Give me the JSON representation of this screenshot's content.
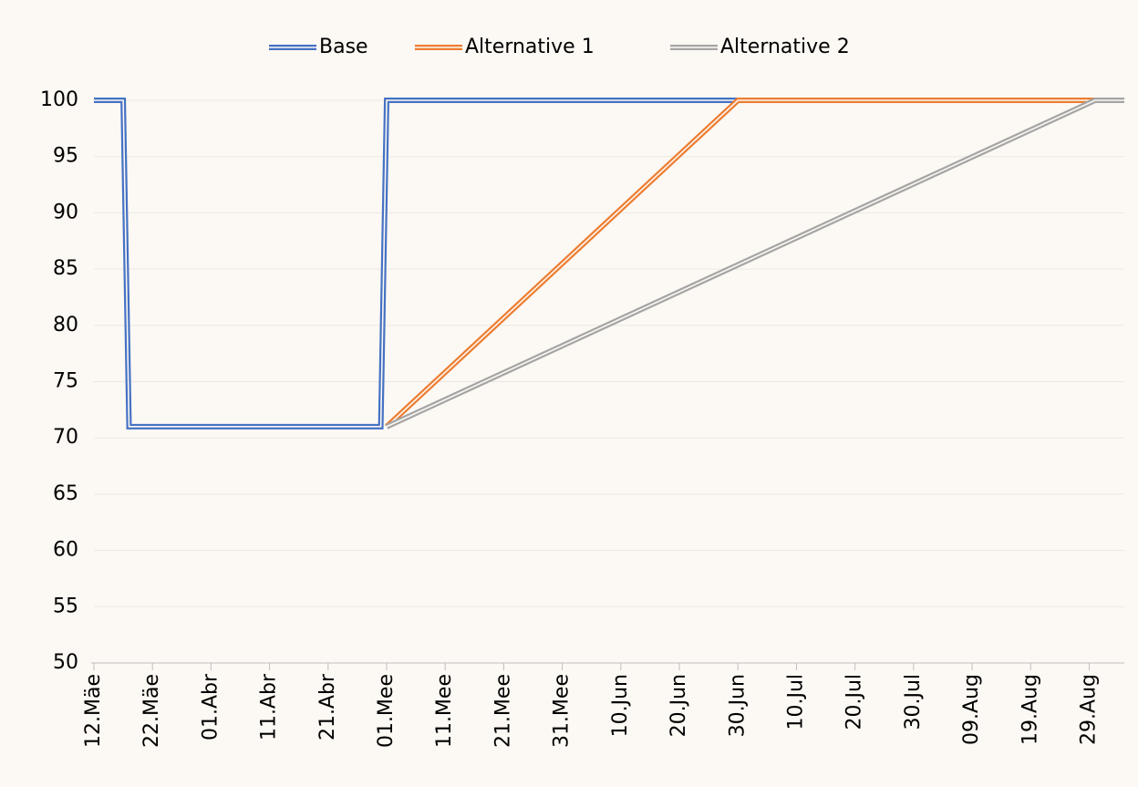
{
  "chart_data": {
    "type": "line",
    "xlim": [
      0,
      176
    ],
    "xticks": [
      {
        "value": 0,
        "label": "12.Mäe"
      },
      {
        "value": 10,
        "label": "22.Mäe"
      },
      {
        "value": 20,
        "label": "01.Abr"
      },
      {
        "value": 30,
        "label": "11.Abr"
      },
      {
        "value": 40,
        "label": "21.Abr"
      },
      {
        "value": 50,
        "label": "01.Mee"
      },
      {
        "value": 60,
        "label": "11.Mee"
      },
      {
        "value": 70,
        "label": "21.Mee"
      },
      {
        "value": 80,
        "label": "31.Mee"
      },
      {
        "value": 90,
        "label": "10.Jun"
      },
      {
        "value": 100,
        "label": "20.Jun"
      },
      {
        "value": 110,
        "label": "30.Jun"
      },
      {
        "value": 120,
        "label": "10.Jul"
      },
      {
        "value": 130,
        "label": "20.Jul"
      },
      {
        "value": 140,
        "label": "30.Jul"
      },
      {
        "value": 150,
        "label": "09.Aug"
      },
      {
        "value": 160,
        "label": "19.Aug"
      },
      {
        "value": 170,
        "label": "29.Aug"
      }
    ],
    "ylim": [
      50,
      100
    ],
    "yticks": [
      50,
      55,
      60,
      65,
      70,
      75,
      80,
      85,
      90,
      95,
      100
    ],
    "grid": true,
    "legend": "top",
    "series": [
      {
        "name": "Base",
        "color": "#4472c4",
        "x": [
          0,
          5,
          6,
          49,
          50,
          176
        ],
        "values": [
          100,
          100,
          71,
          71,
          100,
          100
        ]
      },
      {
        "name": "Alternative 1",
        "color": "#ed7d31",
        "x": [
          50,
          110,
          176
        ],
        "values": [
          71,
          100,
          100
        ]
      },
      {
        "name": "Alternative 2",
        "color": "#a5a5a5",
        "x": [
          50,
          171,
          176
        ],
        "values": [
          71,
          100,
          100
        ]
      }
    ]
  }
}
